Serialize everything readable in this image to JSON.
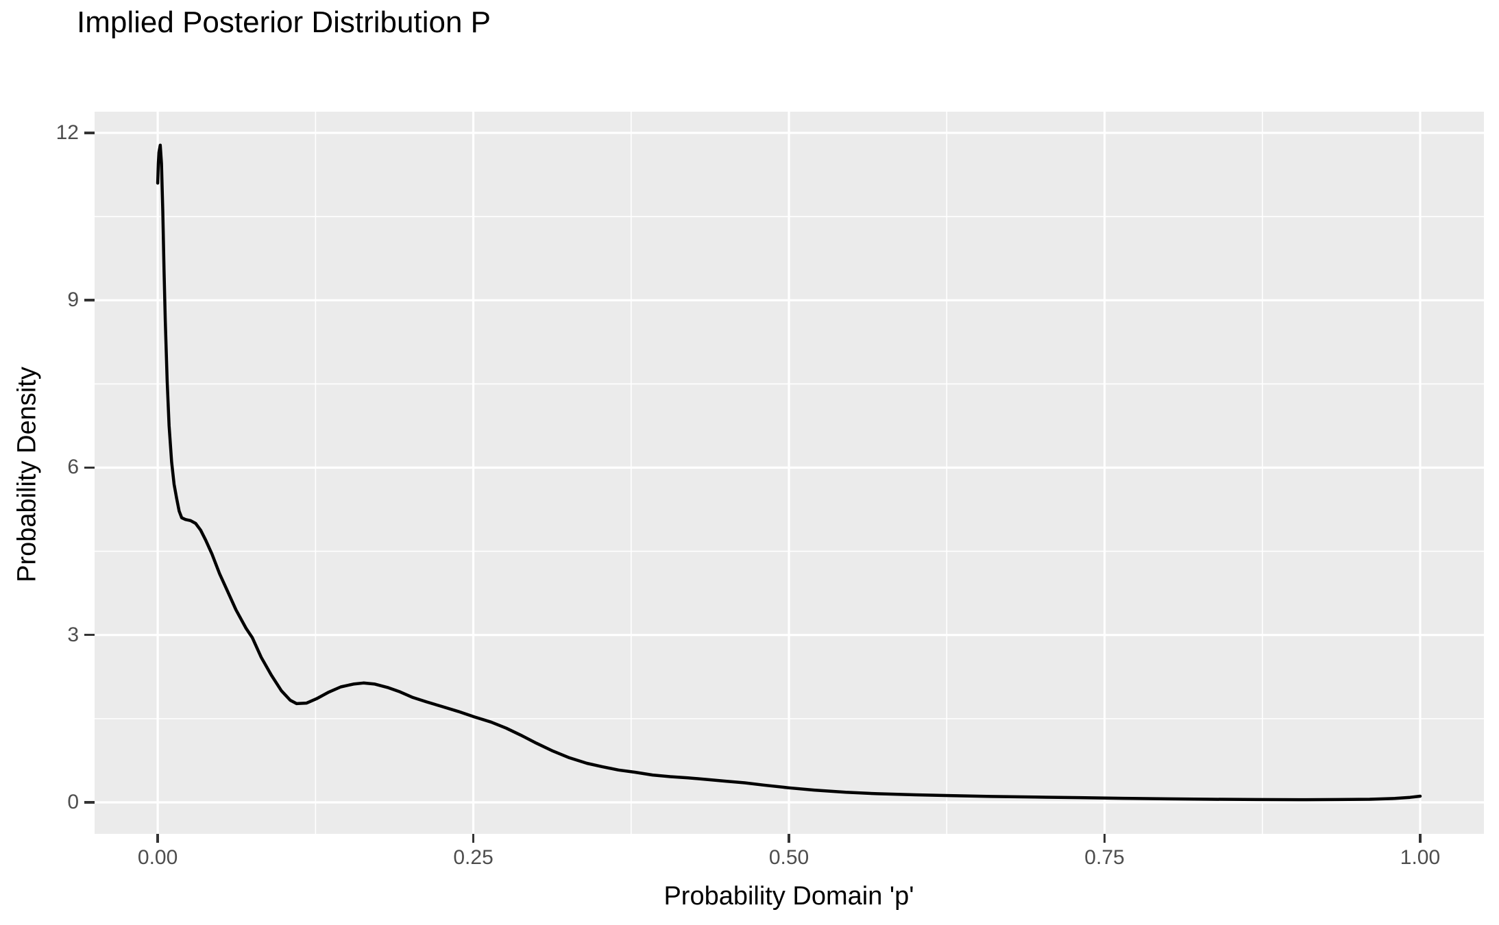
{
  "title": "Implied Posterior Distribution P",
  "chart_data": {
    "type": "line",
    "title": "Implied Posterior Distribution P",
    "xlabel": "Probability Domain 'p'",
    "ylabel": "Probability Density",
    "legend": "none",
    "grid": "white major and minor gridlines on grey panel",
    "xlim": [
      -0.05,
      1.0505
    ],
    "ylim": [
      -0.565,
      12.38
    ],
    "x_ticks": {
      "values": [
        0,
        0.25,
        0.5,
        0.75,
        1.0
      ],
      "labels": [
        "0.00",
        "0.25",
        "0.50",
        "0.75",
        "1.00"
      ]
    },
    "y_ticks": {
      "values": [
        0,
        3,
        6,
        9,
        12
      ],
      "labels": [
        "0",
        "3",
        "6",
        "9",
        "12"
      ]
    },
    "x_minor": [
      0.125,
      0.375,
      0.625,
      0.875
    ],
    "y_minor": [
      1.5,
      4.5,
      7.5,
      10.5
    ],
    "series": [
      {
        "name": "posterior-density-curve",
        "points": [
          [
            0.0,
            11.1
          ],
          [
            0.0005,
            11.45
          ],
          [
            0.001,
            11.65
          ],
          [
            0.002,
            11.78
          ],
          [
            0.003,
            11.45
          ],
          [
            0.004,
            10.6
          ],
          [
            0.005,
            9.55
          ],
          [
            0.006,
            8.65
          ],
          [
            0.0075,
            7.55
          ],
          [
            0.009,
            6.75
          ],
          [
            0.011,
            6.1
          ],
          [
            0.013,
            5.7
          ],
          [
            0.015,
            5.45
          ],
          [
            0.017,
            5.22
          ],
          [
            0.019,
            5.1
          ],
          [
            0.022,
            5.07
          ],
          [
            0.026,
            5.05
          ],
          [
            0.03,
            5.0
          ],
          [
            0.034,
            4.88
          ],
          [
            0.038,
            4.7
          ],
          [
            0.043,
            4.45
          ],
          [
            0.049,
            4.1
          ],
          [
            0.055,
            3.8
          ],
          [
            0.062,
            3.45
          ],
          [
            0.07,
            3.12
          ],
          [
            0.075,
            2.95
          ],
          [
            0.082,
            2.6
          ],
          [
            0.09,
            2.28
          ],
          [
            0.098,
            2.0
          ],
          [
            0.105,
            1.83
          ],
          [
            0.11,
            1.77
          ],
          [
            0.118,
            1.78
          ],
          [
            0.126,
            1.86
          ],
          [
            0.135,
            1.97
          ],
          [
            0.145,
            2.07
          ],
          [
            0.155,
            2.12
          ],
          [
            0.163,
            2.14
          ],
          [
            0.172,
            2.12
          ],
          [
            0.182,
            2.06
          ],
          [
            0.192,
            1.98
          ],
          [
            0.202,
            1.88
          ],
          [
            0.213,
            1.8
          ],
          [
            0.225,
            1.72
          ],
          [
            0.238,
            1.63
          ],
          [
            0.251,
            1.53
          ],
          [
            0.264,
            1.44
          ],
          [
            0.276,
            1.33
          ],
          [
            0.288,
            1.2
          ],
          [
            0.3,
            1.06
          ],
          [
            0.313,
            0.92
          ],
          [
            0.326,
            0.8
          ],
          [
            0.34,
            0.7
          ],
          [
            0.352,
            0.64
          ],
          [
            0.365,
            0.58
          ],
          [
            0.378,
            0.54
          ],
          [
            0.392,
            0.49
          ],
          [
            0.406,
            0.46
          ],
          [
            0.42,
            0.44
          ],
          [
            0.435,
            0.41
          ],
          [
            0.45,
            0.38
          ],
          [
            0.465,
            0.35
          ],
          [
            0.48,
            0.31
          ],
          [
            0.5,
            0.26
          ],
          [
            0.52,
            0.22
          ],
          [
            0.545,
            0.18
          ],
          [
            0.57,
            0.155
          ],
          [
            0.6,
            0.135
          ],
          [
            0.63,
            0.12
          ],
          [
            0.66,
            0.105
          ],
          [
            0.695,
            0.095
          ],
          [
            0.73,
            0.085
          ],
          [
            0.765,
            0.072
          ],
          [
            0.8,
            0.062
          ],
          [
            0.835,
            0.055
          ],
          [
            0.87,
            0.05
          ],
          [
            0.905,
            0.048
          ],
          [
            0.935,
            0.05
          ],
          [
            0.96,
            0.055
          ],
          [
            0.98,
            0.07
          ],
          [
            0.992,
            0.09
          ],
          [
            1.0,
            0.11
          ]
        ]
      }
    ]
  },
  "style": {
    "background": "#FFFFFF",
    "panel_bg": "#EBEBEB",
    "grid_color": "#FFFFFF",
    "curve_color": "#000000",
    "tick_label_color": "#4D4D4D",
    "tick_mark_color": "#333333",
    "axis_title_color": "#000000"
  }
}
